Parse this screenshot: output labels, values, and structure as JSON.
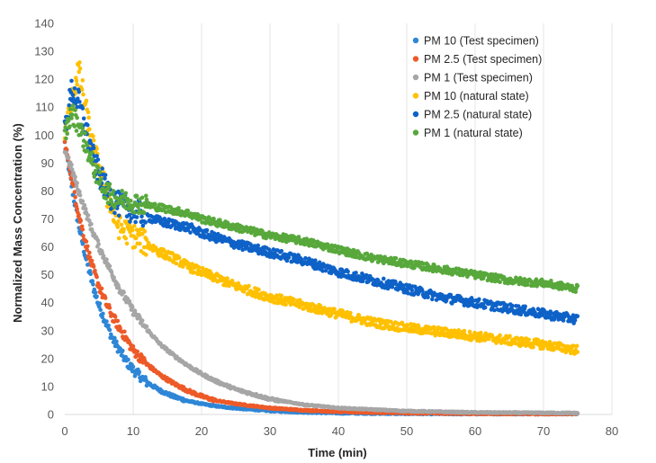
{
  "chart_data": {
    "type": "scatter",
    "title": "",
    "xlabel": "Time (min)",
    "ylabel": "Normalized Mass Concentration (%)",
    "xlim": [
      0,
      80
    ],
    "ylim": [
      0,
      140
    ],
    "xticks": [
      0,
      10,
      20,
      30,
      40,
      50,
      60,
      70,
      80
    ],
    "yticks": [
      0,
      10,
      20,
      30,
      40,
      50,
      60,
      70,
      80,
      90,
      100,
      110,
      120,
      130,
      140
    ],
    "grid": "vertical",
    "legend_position": "top-right",
    "series": [
      {
        "name": "PM 10 (Test specimen)",
        "color": "#2e86d6",
        "x": [
          0,
          1,
          2,
          3,
          4,
          5,
          6,
          7,
          8,
          9,
          10,
          12,
          14,
          16,
          18,
          20,
          22,
          25,
          30,
          35,
          40,
          50,
          60,
          75
        ],
        "y": [
          97,
          82,
          68,
          57,
          47,
          39,
          33,
          27,
          23,
          19,
          16,
          11.5,
          8.5,
          6.3,
          4.8,
          3.8,
          3,
          2.2,
          1.3,
          0.8,
          0.5,
          0.3,
          0.2,
          0.2
        ]
      },
      {
        "name": "PM 2.5 (Test specimen)",
        "color": "#ed5a28",
        "x": [
          0,
          1,
          2,
          3,
          4,
          5,
          6,
          7,
          8,
          9,
          10,
          12,
          14,
          16,
          18,
          20,
          22,
          25,
          30,
          35,
          40,
          50,
          60,
          75
        ],
        "y": [
          97,
          85,
          72,
          62,
          53,
          46,
          40,
          35,
          31,
          27,
          23,
          18,
          14,
          11,
          8.5,
          6.5,
          5,
          3.8,
          2.3,
          1.5,
          1,
          0.5,
          0.3,
          0.2
        ]
      },
      {
        "name": "PM 1 (Test specimen)",
        "color": "#a6a6a6",
        "x": [
          0,
          1,
          2,
          3,
          4,
          5,
          6,
          7,
          8,
          9,
          10,
          12,
          14,
          16,
          18,
          20,
          22,
          25,
          30,
          35,
          40,
          50,
          60,
          75
        ],
        "y": [
          95,
          88,
          80,
          73,
          66,
          60,
          55,
          50,
          45,
          41,
          37,
          30.5,
          25,
          21,
          17.5,
          14.5,
          12,
          9,
          5.5,
          3.5,
          2.3,
          1.2,
          0.7,
          0.5
        ]
      },
      {
        "name": "PM 10 (natural state)",
        "color": "#ffc000",
        "x": [
          0,
          1,
          2,
          3,
          4,
          5,
          6,
          7,
          8,
          10,
          12,
          14,
          16,
          18,
          20,
          25,
          30,
          35,
          40,
          45,
          50,
          55,
          60,
          65,
          70,
          75
        ],
        "y": [
          100,
          112,
          124,
          110,
          97,
          88,
          80,
          72,
          67,
          64,
          61,
          58,
          56,
          53,
          51,
          46,
          42,
          39,
          36,
          33,
          31,
          29.5,
          28,
          26.5,
          25,
          23
        ]
      },
      {
        "name": "PM 2.5 (natural state)",
        "color": "#0e62c7",
        "x": [
          0,
          1,
          2,
          3,
          4,
          5,
          6,
          7,
          8,
          10,
          12,
          14,
          16,
          18,
          20,
          25,
          30,
          35,
          40,
          45,
          50,
          55,
          60,
          65,
          70,
          75
        ],
        "y": [
          102,
          116,
          112,
          103,
          93,
          86,
          81,
          77,
          75,
          73,
          71,
          69,
          68,
          67,
          65,
          61,
          58,
          55,
          51,
          48,
          45,
          42,
          40,
          38,
          36,
          34
        ]
      },
      {
        "name": "PM 1 (natural state)",
        "color": "#58a83c",
        "x": [
          0,
          1,
          2,
          3,
          4,
          5,
          6,
          7,
          8,
          10,
          12,
          14,
          16,
          18,
          20,
          25,
          30,
          35,
          40,
          45,
          50,
          55,
          60,
          65,
          70,
          75
        ],
        "y": [
          100,
          108,
          104,
          97,
          90,
          84,
          80,
          78,
          77,
          76,
          75,
          74,
          73,
          72,
          70,
          67,
          64,
          62,
          59,
          56,
          54,
          52,
          50,
          48,
          47,
          45
        ]
      }
    ]
  }
}
